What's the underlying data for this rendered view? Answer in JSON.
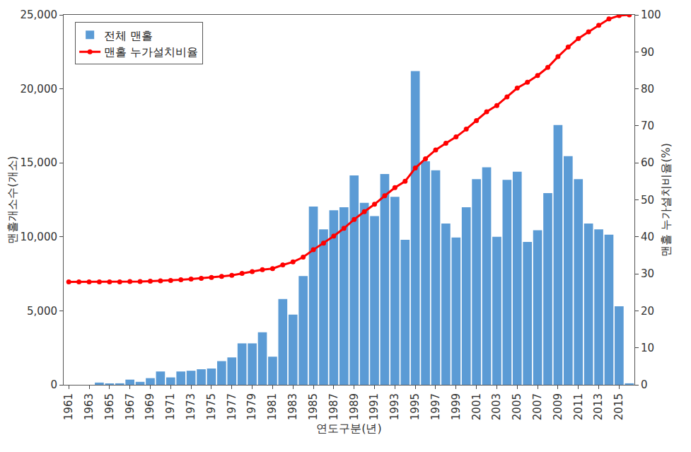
{
  "chart_data": {
    "type": "bar",
    "x_label": "연도구분(년)",
    "y_label": "맨홀개소수(개소)",
    "y2_label": "맨홀 누가설치비율(%)",
    "x": [
      1961,
      1962,
      1963,
      1964,
      1965,
      1966,
      1967,
      1968,
      1969,
      1970,
      1971,
      1972,
      1973,
      1974,
      1975,
      1976,
      1977,
      1978,
      1979,
      1980,
      1981,
      1982,
      1983,
      1984,
      1985,
      1986,
      1987,
      1988,
      1989,
      1990,
      1991,
      1992,
      1993,
      1994,
      1995,
      1996,
      1997,
      1998,
      1999,
      2000,
      2001,
      2002,
      2003,
      2004,
      2005,
      2006,
      2007,
      2008,
      2009,
      2010,
      2011,
      2012,
      2013,
      2014,
      2015,
      2016
    ],
    "xlim": [
      1960.5,
      2016.5
    ],
    "xticks": [
      1961,
      1963,
      1965,
      1967,
      1969,
      1971,
      1973,
      1975,
      1977,
      1979,
      1981,
      1983,
      1985,
      1987,
      1989,
      1991,
      1993,
      1995,
      1997,
      1999,
      2001,
      2003,
      2005,
      2007,
      2009,
      2011,
      2013,
      2015
    ],
    "ylim": [
      0,
      25000
    ],
    "yticks": [
      0,
      {
        "value": 5000,
        "label": "5,000"
      },
      {
        "value": 10000,
        "label": "10,000"
      },
      {
        "value": 15000,
        "label": "15,000"
      },
      {
        "value": 20000,
        "label": "20,000"
      },
      {
        "value": 25000,
        "label": "25,000"
      }
    ],
    "y2lim": [
      0,
      100
    ],
    "y2ticks": [
      0,
      10,
      20,
      30,
      40,
      50,
      60,
      70,
      80,
      90,
      100
    ],
    "legend": "top left",
    "grid": false,
    "series": [
      {
        "name": "전체 맨홀",
        "type": "bar",
        "color": "#5b9bd5",
        "values": [
          0,
          0,
          0,
          150,
          50,
          100,
          350,
          200,
          450,
          900,
          500,
          900,
          950,
          1050,
          1100,
          1600,
          1850,
          2800,
          2800,
          3550,
          1900,
          5800,
          4750,
          7350,
          12050,
          10500,
          11800,
          12000,
          14150,
          12300,
          11400,
          14250,
          12700,
          9800,
          21200,
          15100,
          14500,
          10900,
          9950,
          12000,
          13900,
          14700,
          10000,
          13850,
          14400,
          9650,
          10450,
          12950,
          17550,
          15450,
          13900,
          10900,
          10500,
          10150,
          5300,
          100
        ]
      },
      {
        "name": "맨홀 누가설치비율",
        "type": "line",
        "axis": "y2",
        "color": "#ff0000",
        "marker": "circle",
        "line_style": "solid",
        "values": [
          27.8,
          27.8,
          27.8,
          27.8,
          27.8,
          27.8,
          27.9,
          27.9,
          28.0,
          28.1,
          28.2,
          28.4,
          28.6,
          28.8,
          29.0,
          29.3,
          29.6,
          30.1,
          30.6,
          31.1,
          31.4,
          32.4,
          33.2,
          34.5,
          36.5,
          38.3,
          40.2,
          42.3,
          44.7,
          46.8,
          48.8,
          51.1,
          53.3,
          55.0,
          58.6,
          61.1,
          63.5,
          65.3,
          67.0,
          69.1,
          71.4,
          73.8,
          75.5,
          77.8,
          80.2,
          81.8,
          83.6,
          85.8,
          88.7,
          91.3,
          93.6,
          95.4,
          97.2,
          98.9,
          99.8,
          100
        ]
      }
    ]
  }
}
